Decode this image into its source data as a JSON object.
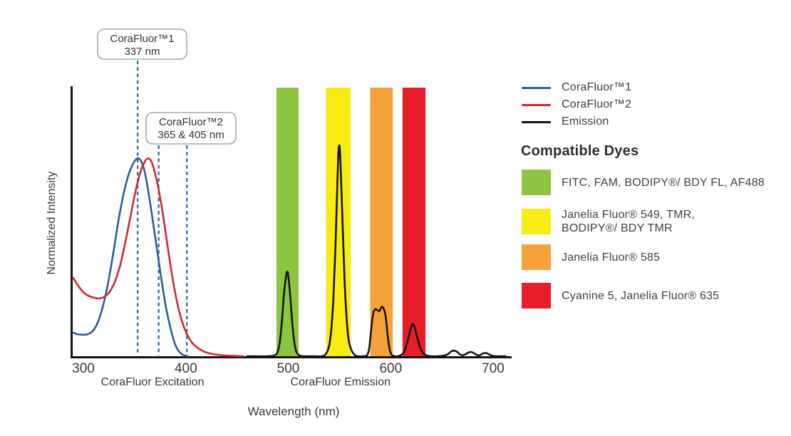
{
  "annotations": [
    {
      "title": "CoraFluor™1",
      "subtitle": "337 nm"
    },
    {
      "title": "CoraFluor™2",
      "subtitle": "365 & 405 nm"
    }
  ],
  "legend": {
    "series": [
      {
        "label": "CoraFluor™1",
        "color": "#2a5d9c"
      },
      {
        "label": "CoraFluor™2",
        "color": "#d7282f"
      },
      {
        "label": "Emission",
        "color": "#141414"
      }
    ],
    "dyes_heading": "Compatible Dyes",
    "dyes": [
      {
        "color": "#8cc540",
        "lines": [
          "FITC, FAM, BODIPY®/ BDY FL, AF488"
        ]
      },
      {
        "color": "#f9ec16",
        "lines": [
          "Janelia Fluor® 549, TMR,",
          "BODIPY®/ BDY TMR"
        ]
      },
      {
        "color": "#f5a23b",
        "lines": [
          "Janelia Fluor® 585"
        ]
      },
      {
        "color": "#e51e2a",
        "lines": [
          "Cyanine 5, Janelia Fluor® 635"
        ]
      }
    ]
  },
  "chart_data": {
    "type": "line",
    "xlabel": "Wavelength (nm)",
    "ylabel": "Normalized Intensity",
    "x_range": [
      289,
      717
    ],
    "ylim": [
      0,
      1
    ],
    "grid": false,
    "xticks": [
      "300",
      "400",
      "500",
      "600",
      "700"
    ],
    "xtick_values": [
      300,
      400,
      500,
      600,
      700
    ],
    "section_labels": [
      {
        "text": "CoraFluor Excitation",
        "center_nm": 367.5
      },
      {
        "text": "CoraFluor Emission",
        "center_nm": 551
      }
    ],
    "markers": [
      {
        "label": "337 nm",
        "draw_nm": 353,
        "top_y": 85
      },
      {
        "label": "365 nm",
        "draw_nm": 373.5,
        "top_y": 204
      },
      {
        "label": "405 nm",
        "draw_nm": 401,
        "top_y": 204
      }
    ],
    "marker_color": "#2e6ba6",
    "bands": [
      {
        "name": "FITC, FAM, BODIPY/BDY FL, AF488 window",
        "color": "#8cc540",
        "from_nm": 488.5,
        "to_nm": 510
      },
      {
        "name": "Janelia Fluor 549, TMR, BODIPY/BDY TMR window",
        "color": "#f9ec16",
        "from_nm": 537,
        "to_nm": 561
      },
      {
        "name": "Janelia Fluor 585 window",
        "color": "#f5a23b",
        "from_nm": 580,
        "to_nm": 602
      },
      {
        "name": "Cyanine 5, Janelia Fluor 635 window",
        "color": "#e51e2a",
        "from_nm": 611.5,
        "to_nm": 634
      }
    ],
    "series": [
      {
        "name": "CoraFluor™1 excitation",
        "color": "#2a5d9c",
        "points": [
          [
            290,
            0.088
          ],
          [
            294,
            0.082
          ],
          [
            299,
            0.08
          ],
          [
            304,
            0.082
          ],
          [
            309,
            0.093
          ],
          [
            314,
            0.125
          ],
          [
            319,
            0.185
          ],
          [
            324,
            0.27
          ],
          [
            329,
            0.38
          ],
          [
            334,
            0.5
          ],
          [
            339,
            0.6
          ],
          [
            344,
            0.675
          ],
          [
            349,
            0.72
          ],
          [
            352,
            0.735
          ],
          [
            354,
            0.737
          ],
          [
            356,
            0.728
          ],
          [
            359,
            0.7
          ],
          [
            362,
            0.645
          ],
          [
            366,
            0.55
          ],
          [
            371,
            0.42
          ],
          [
            376,
            0.29
          ],
          [
            381,
            0.175
          ],
          [
            386,
            0.09
          ],
          [
            390,
            0.04
          ],
          [
            394,
            0.015
          ],
          [
            398,
            0.004
          ],
          [
            402,
            0
          ]
        ]
      },
      {
        "name": "CoraFluor™2 excitation",
        "color": "#d7282f",
        "points": [
          [
            290,
            0.292
          ],
          [
            295,
            0.262
          ],
          [
            300,
            0.238
          ],
          [
            305,
            0.225
          ],
          [
            311,
            0.217
          ],
          [
            316,
            0.215
          ],
          [
            321,
            0.222
          ],
          [
            326,
            0.242
          ],
          [
            331,
            0.28
          ],
          [
            336,
            0.34
          ],
          [
            341,
            0.425
          ],
          [
            346,
            0.52
          ],
          [
            351,
            0.615
          ],
          [
            356,
            0.69
          ],
          [
            360,
            0.725
          ],
          [
            363,
            0.736
          ],
          [
            366,
            0.728
          ],
          [
            369,
            0.695
          ],
          [
            373,
            0.63
          ],
          [
            378,
            0.52
          ],
          [
            383,
            0.39
          ],
          [
            388,
            0.27
          ],
          [
            393,
            0.175
          ],
          [
            398,
            0.11
          ],
          [
            403,
            0.068
          ],
          [
            408,
            0.042
          ],
          [
            414,
            0.025
          ],
          [
            420,
            0.014
          ],
          [
            428,
            0.007
          ],
          [
            437,
            0.003
          ],
          [
            447,
            0.001
          ],
          [
            456,
            0
          ]
        ]
      },
      {
        "name": "Emission",
        "color": "#141414",
        "points": [
          [
            460,
            0
          ],
          [
            480,
            0
          ],
          [
            487,
            0.004
          ],
          [
            490,
            0.02
          ],
          [
            492,
            0.06
          ],
          [
            494,
            0.14
          ],
          [
            496,
            0.24
          ],
          [
            498,
            0.3
          ],
          [
            499,
            0.315
          ],
          [
            500,
            0.3
          ],
          [
            502,
            0.22
          ],
          [
            504,
            0.12
          ],
          [
            506,
            0.05
          ],
          [
            508,
            0.015
          ],
          [
            511,
            0.003
          ],
          [
            515,
            0
          ],
          [
            525,
            0
          ],
          [
            533,
            0
          ],
          [
            537,
            0.01
          ],
          [
            540,
            0.04
          ],
          [
            542,
            0.1
          ],
          [
            544,
            0.21
          ],
          [
            546,
            0.4
          ],
          [
            548,
            0.65
          ],
          [
            549,
            0.76
          ],
          [
            550,
            0.783
          ],
          [
            551,
            0.72
          ],
          [
            553,
            0.5
          ],
          [
            555,
            0.28
          ],
          [
            557,
            0.14
          ],
          [
            559,
            0.06
          ],
          [
            562,
            0.02
          ],
          [
            565,
            0.004
          ],
          [
            568,
            0
          ],
          [
            573,
            0
          ],
          [
            577,
            0.004
          ],
          [
            579,
            0.03
          ],
          [
            581,
            0.1
          ],
          [
            583,
            0.16
          ],
          [
            585,
            0.175
          ],
          [
            587,
            0.172
          ],
          [
            589,
            0.168
          ],
          [
            591,
            0.183
          ],
          [
            593,
            0.178
          ],
          [
            595,
            0.15
          ],
          [
            597,
            0.08
          ],
          [
            599,
            0.025
          ],
          [
            601,
            0.005
          ],
          [
            604,
            0
          ],
          [
            607,
            0
          ],
          [
            610,
            0.004
          ],
          [
            613,
            0.015
          ],
          [
            616,
            0.05
          ],
          [
            619,
            0.095
          ],
          [
            621,
            0.118
          ],
          [
            623,
            0.112
          ],
          [
            626,
            0.07
          ],
          [
            629,
            0.03
          ],
          [
            632,
            0.01
          ],
          [
            635,
            0.003
          ],
          [
            639,
            0
          ],
          [
            646,
            0
          ],
          [
            652,
            0.002
          ],
          [
            656,
            0.008
          ],
          [
            660,
            0.02
          ],
          [
            664,
            0.018
          ],
          [
            668,
            0.006
          ],
          [
            671,
            0.004
          ],
          [
            675,
            0.012
          ],
          [
            678,
            0.016
          ],
          [
            681,
            0.012
          ],
          [
            684,
            0.005
          ],
          [
            687,
            0.004
          ],
          [
            690,
            0.01
          ],
          [
            693,
            0.012
          ],
          [
            696,
            0.007
          ],
          [
            699,
            0.002
          ],
          [
            703,
            0
          ],
          [
            712,
            0
          ]
        ]
      }
    ]
  }
}
